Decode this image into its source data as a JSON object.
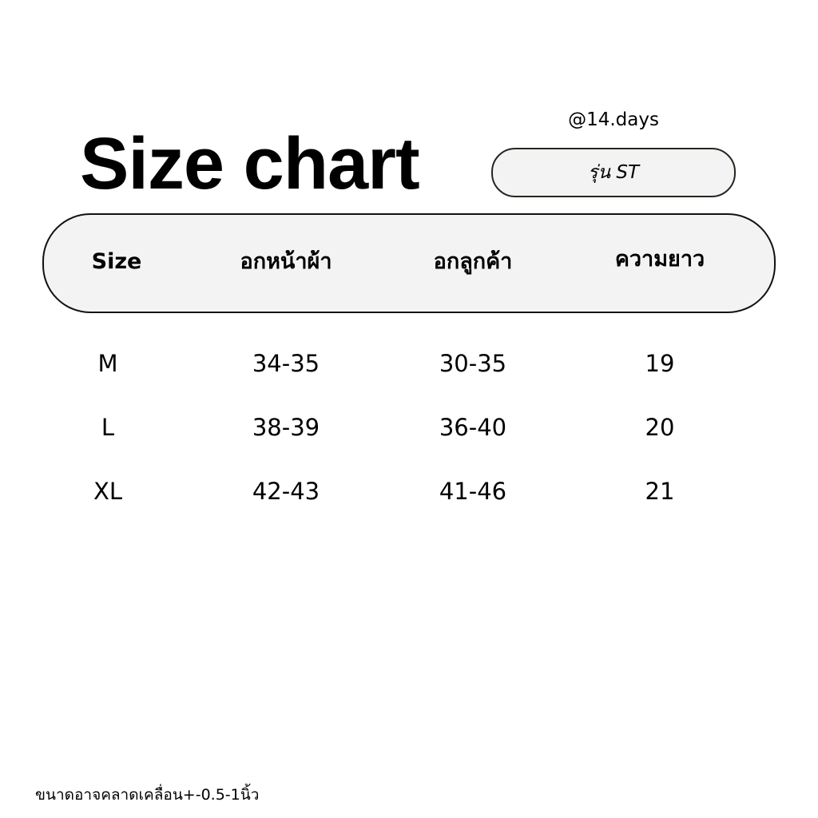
{
  "title": "Size chart",
  "handle": "@14.days",
  "model_label": "รุ่น ST",
  "table": {
    "headers": [
      "Size",
      "อกหน้าผ้า",
      "อกลูกค้า",
      "ความยาว"
    ],
    "rows": [
      [
        "M",
        "34-35",
        "30-35",
        "19"
      ],
      [
        "L",
        "38-39",
        "36-40",
        "20"
      ],
      [
        "XL",
        "42-43",
        "41-46",
        "21"
      ]
    ]
  },
  "footer_note": "ขนาดอาจคลาดเคลื่อน+-0.5-1นิ้ว",
  "colors": {
    "pill_fill": "#f3f3f3",
    "border": "#111111"
  }
}
